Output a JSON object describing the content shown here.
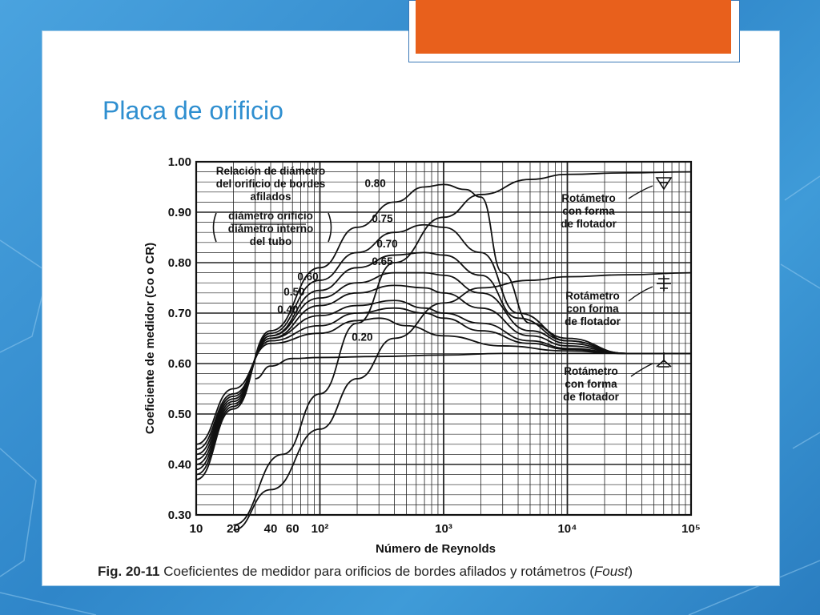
{
  "slide": {
    "title": "Placa de orificio",
    "accent_color": "#e8601c",
    "title_color": "#2f8fd0",
    "background_color": "#3a95d6"
  },
  "caption": {
    "figure_label": "Fig. 20-11",
    "text_before": " Coeficientes de medidor para orificios de bordes afilados y rotámetros (",
    "source": "Foust",
    "text_after": ")"
  },
  "chart_data": {
    "type": "line",
    "xlabel": "Número de Reynolds",
    "ylabel": "Coeficiente de medidor (Co o CR)",
    "x_scale": "log",
    "xlim": [
      10,
      100000
    ],
    "ylim": [
      0.3,
      1.0
    ],
    "grid": true,
    "x_tick_labels": [
      {
        "x": 10,
        "label": "10"
      },
      {
        "x": 20,
        "label": "20"
      },
      {
        "x": 40,
        "label": "40"
      },
      {
        "x": 60,
        "label": "60"
      },
      {
        "x": 100,
        "label": "10²"
      },
      {
        "x": 1000,
        "label": "10³"
      },
      {
        "x": 10000,
        "label": "10⁴"
      },
      {
        "x": 100000,
        "label": "10⁵"
      }
    ],
    "y_tick_labels": [
      "0.30",
      "0.40",
      "0.50",
      "0.60",
      "0.70",
      "0.80",
      "0.90",
      "1.00"
    ],
    "annotations": {
      "orifice_title": [
        "Relación de diámetro",
        "del orificio de bordes",
        "afilados"
      ],
      "orifice_ratio": [
        "diámetro orificio",
        "diámetro interno",
        "del tubo"
      ],
      "rotameter_1": [
        "Rotámetro",
        "con forma",
        "de flotador"
      ],
      "rotameter_2": [
        "Rotámetro",
        "con forma",
        "de flotador"
      ],
      "rotameter_3": [
        "Rotámetro",
        "con forma",
        "de flotador"
      ]
    },
    "series": [
      {
        "name": "0.20",
        "points": [
          [
            10,
            0.44
          ],
          [
            20,
            0.55
          ],
          [
            40,
            0.64
          ],
          [
            100,
            0.66
          ],
          [
            200,
            0.685
          ],
          [
            300,
            0.69
          ],
          [
            500,
            0.675
          ],
          [
            1000,
            0.655
          ],
          [
            3000,
            0.635
          ],
          [
            10000,
            0.625
          ],
          [
            30000,
            0.62
          ],
          [
            100000,
            0.62
          ]
        ]
      },
      {
        "name": "0.40",
        "points": [
          [
            10,
            0.43
          ],
          [
            20,
            0.54
          ],
          [
            40,
            0.645
          ],
          [
            100,
            0.675
          ],
          [
            200,
            0.7
          ],
          [
            400,
            0.71
          ],
          [
            700,
            0.7
          ],
          [
            1000,
            0.69
          ],
          [
            2000,
            0.665
          ],
          [
            5000,
            0.64
          ],
          [
            10000,
            0.628
          ],
          [
            30000,
            0.62
          ],
          [
            100000,
            0.62
          ]
        ]
      },
      {
        "name": "0.50",
        "points": [
          [
            10,
            0.42
          ],
          [
            20,
            0.535
          ],
          [
            40,
            0.65
          ],
          [
            100,
            0.695
          ],
          [
            200,
            0.715
          ],
          [
            400,
            0.725
          ],
          [
            700,
            0.71
          ],
          [
            1000,
            0.7
          ],
          [
            2000,
            0.68
          ],
          [
            5000,
            0.645
          ],
          [
            10000,
            0.63
          ],
          [
            30000,
            0.62
          ],
          [
            100000,
            0.62
          ]
        ]
      },
      {
        "name": "0.60",
        "points": [
          [
            10,
            0.41
          ],
          [
            20,
            0.53
          ],
          [
            40,
            0.65
          ],
          [
            100,
            0.715
          ],
          [
            200,
            0.74
          ],
          [
            400,
            0.755
          ],
          [
            700,
            0.75
          ],
          [
            1000,
            0.74
          ],
          [
            2000,
            0.71
          ],
          [
            5000,
            0.655
          ],
          [
            10000,
            0.635
          ],
          [
            30000,
            0.62
          ],
          [
            100000,
            0.62
          ]
        ]
      },
      {
        "name": "0.65",
        "points": [
          [
            10,
            0.4
          ],
          [
            20,
            0.525
          ],
          [
            40,
            0.655
          ],
          [
            100,
            0.73
          ],
          [
            200,
            0.76
          ],
          [
            400,
            0.78
          ],
          [
            700,
            0.78
          ],
          [
            1000,
            0.775
          ],
          [
            2000,
            0.74
          ],
          [
            5000,
            0.665
          ],
          [
            10000,
            0.64
          ],
          [
            30000,
            0.62
          ],
          [
            100000,
            0.62
          ]
        ]
      },
      {
        "name": "0.70",
        "points": [
          [
            10,
            0.39
          ],
          [
            20,
            0.52
          ],
          [
            40,
            0.655
          ],
          [
            100,
            0.745
          ],
          [
            200,
            0.79
          ],
          [
            400,
            0.815
          ],
          [
            700,
            0.82
          ],
          [
            1000,
            0.815
          ],
          [
            2000,
            0.775
          ],
          [
            4000,
            0.69
          ],
          [
            10000,
            0.645
          ],
          [
            30000,
            0.62
          ],
          [
            100000,
            0.62
          ]
        ]
      },
      {
        "name": "0.75",
        "points": [
          [
            10,
            0.38
          ],
          [
            20,
            0.515
          ],
          [
            40,
            0.66
          ],
          [
            100,
            0.765
          ],
          [
            200,
            0.82
          ],
          [
            400,
            0.86
          ],
          [
            700,
            0.875
          ],
          [
            1000,
            0.87
          ],
          [
            2000,
            0.82
          ],
          [
            4000,
            0.7
          ],
          [
            10000,
            0.65
          ],
          [
            30000,
            0.62
          ],
          [
            100000,
            0.62
          ]
        ]
      },
      {
        "name": "0.80",
        "points": [
          [
            10,
            0.37
          ],
          [
            20,
            0.51
          ],
          [
            40,
            0.665
          ],
          [
            100,
            0.79
          ],
          [
            200,
            0.87
          ],
          [
            400,
            0.92
          ],
          [
            700,
            0.95
          ],
          [
            1000,
            0.955
          ],
          [
            1500,
            0.945
          ],
          [
            2000,
            0.93
          ],
          [
            3000,
            0.78
          ],
          [
            5000,
            0.68
          ],
          [
            10000,
            0.645
          ],
          [
            30000,
            0.62
          ],
          [
            100000,
            0.62
          ]
        ]
      },
      {
        "name": "Rotámetro 1",
        "points": [
          [
            20,
            0.28
          ],
          [
            50,
            0.42
          ],
          [
            100,
            0.54
          ],
          [
            200,
            0.68
          ],
          [
            400,
            0.8
          ],
          [
            1000,
            0.89
          ],
          [
            2000,
            0.935
          ],
          [
            5000,
            0.965
          ],
          [
            10000,
            0.975
          ],
          [
            30000,
            0.978
          ],
          [
            100000,
            0.98
          ]
        ]
      },
      {
        "name": "Rotámetro 2",
        "points": [
          [
            20,
            0.27
          ],
          [
            40,
            0.35
          ],
          [
            100,
            0.47
          ],
          [
            200,
            0.57
          ],
          [
            400,
            0.65
          ],
          [
            1000,
            0.72
          ],
          [
            2000,
            0.75
          ],
          [
            5000,
            0.765
          ],
          [
            10000,
            0.772
          ],
          [
            30000,
            0.776
          ],
          [
            100000,
            0.78
          ]
        ]
      },
      {
        "name": "Rotámetro 3",
        "points": [
          [
            30,
            0.57
          ],
          [
            40,
            0.595
          ],
          [
            60,
            0.61
          ],
          [
            100,
            0.612
          ],
          [
            300,
            0.614
          ],
          [
            1000,
            0.617
          ],
          [
            3000,
            0.62
          ],
          [
            10000,
            0.62
          ],
          [
            100000,
            0.62
          ]
        ]
      }
    ],
    "series_labels": [
      {
        "series": "0.20",
        "label": "0.20"
      },
      {
        "series": "0.40",
        "label": "0.40"
      },
      {
        "series": "0.50",
        "label": "0.50"
      },
      {
        "series": "0.60",
        "label": "0.60"
      },
      {
        "series": "0.65",
        "label": "0.65"
      },
      {
        "series": "0.70",
        "label": "0.70"
      },
      {
        "series": "0.75",
        "label": "0.75"
      },
      {
        "series": "0.80",
        "label": "0.80"
      }
    ]
  }
}
